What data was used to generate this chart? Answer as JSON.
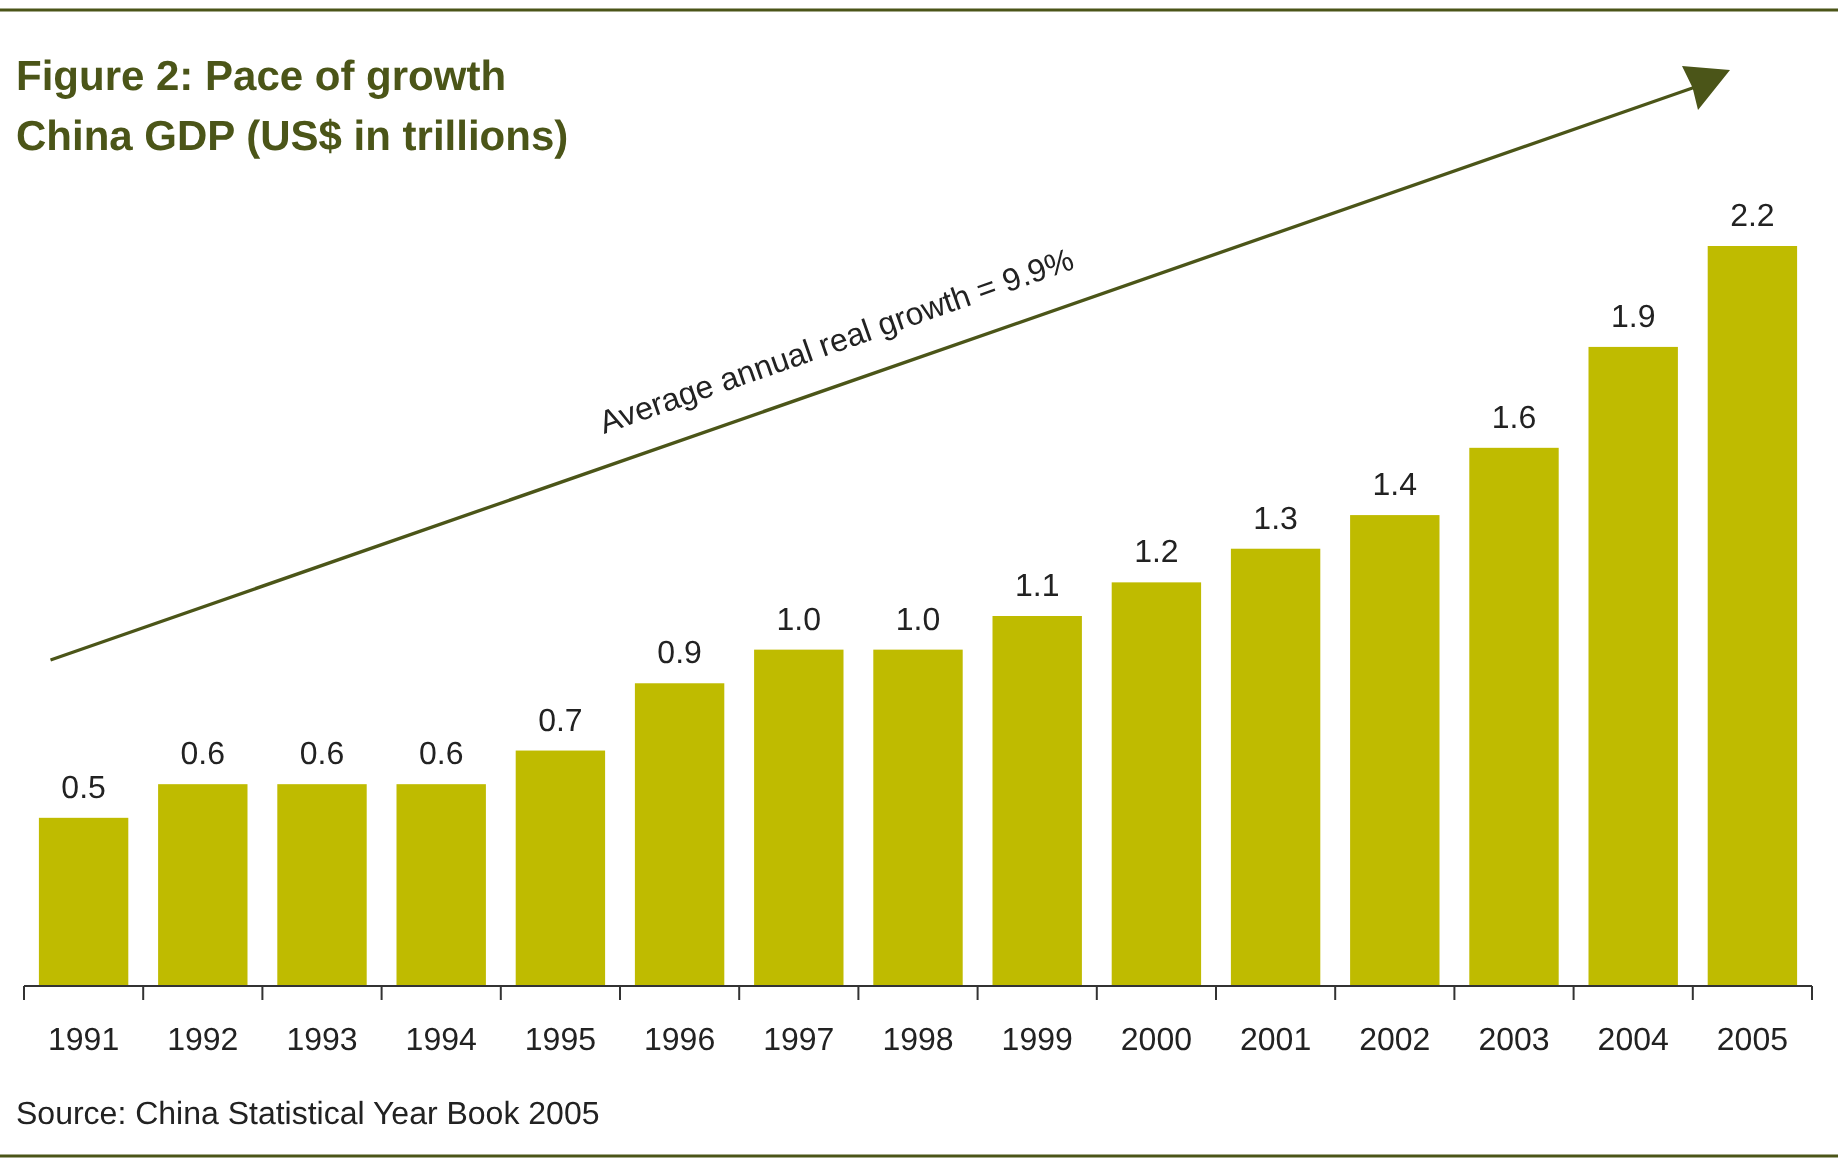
{
  "chart_data": {
    "type": "bar",
    "title": "Figure 2: Pace of growth",
    "subtitle": "China GDP (US$ in trillions)",
    "categories": [
      "1991",
      "1992",
      "1993",
      "1994",
      "1995",
      "1996",
      "1997",
      "1998",
      "1999",
      "2000",
      "2001",
      "2002",
      "2003",
      "2004",
      "2005"
    ],
    "values": [
      0.5,
      0.6,
      0.6,
      0.6,
      0.7,
      0.9,
      1.0,
      1.0,
      1.1,
      1.2,
      1.3,
      1.4,
      1.6,
      1.9,
      2.2
    ],
    "value_labels": [
      "0.5",
      "0.6",
      "0.6",
      "0.6",
      "0.7",
      "0.9",
      "1.0",
      "1.0",
      "1.1",
      "1.2",
      "1.3",
      "1.4",
      "1.6",
      "1.9",
      "2.2"
    ],
    "color": "#bfbb00",
    "annotations": [
      "Average annual real growth = 9.9%",
      "Source: China Statistical Year Book 2005"
    ]
  }
}
